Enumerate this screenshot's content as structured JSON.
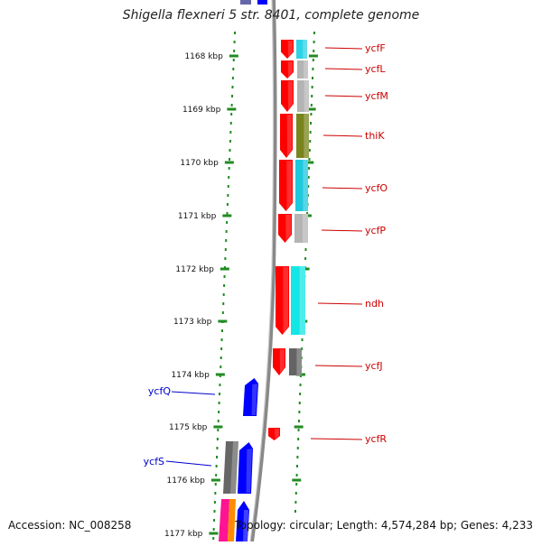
{
  "title": "Shigella flexneri 5 str. 8401, complete genome",
  "footer": {
    "accession": "Accession: NC_008258",
    "summary": "Topology: circular; Length: 4,574,284 bp; Genes: 4,233"
  },
  "ruler": {
    "labels": [
      "1168 kbp",
      "1169 kbp",
      "1170 kbp",
      "1171 kbp",
      "1172 kbp",
      "1173 kbp",
      "1174 kbp",
      "1175 kbp",
      "1176 kbp",
      "1177 kbp"
    ]
  },
  "genes_forward": [
    {
      "name": "ycfF",
      "color": "#ff0000",
      "cog_color": "#2dd2e6"
    },
    {
      "name": "ycfL",
      "color": "#ff0000",
      "cog_color": "#b4b4b4"
    },
    {
      "name": "ycfM",
      "color": "#ff0000",
      "cog_color": "#b4b4b4"
    },
    {
      "name": "thiK",
      "color": "#ff0000",
      "cog_color": "#78841c"
    },
    {
      "name": "ycfO",
      "color": "#ff0000",
      "cog_color": "#1ec8dc"
    },
    {
      "name": "ycfP",
      "color": "#ff0000",
      "cog_color": "#b4b4b4"
    },
    {
      "name": "ndh",
      "color": "#ff0000",
      "cog_color": "#14e6e6"
    },
    {
      "name": "ycfJ",
      "color": "#ff0000",
      "cog_color": "#646464"
    },
    {
      "name": "ycfR",
      "color": "#ff0000",
      "cog_color": ""
    }
  ],
  "genes_reverse": [
    {
      "name": "ycfQ",
      "color": "#0000ff"
    },
    {
      "name": "ycfS",
      "color": "#0000ff"
    }
  ],
  "colors": {
    "forward_label": "#cc0000",
    "reverse_label": "#0000cc",
    "tick": "#228b22",
    "backbone": "#888888"
  }
}
